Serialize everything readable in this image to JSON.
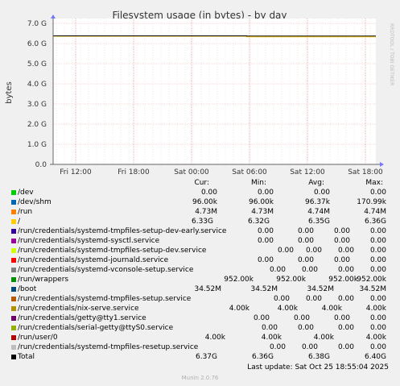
{
  "chart_data": {
    "type": "line",
    "title": "Filesystem usage (in bytes) - by day",
    "ylabel": "bytes",
    "side_label": "RRDTOOL / TOBI OETIKER",
    "ylim": [
      0,
      7.0
    ],
    "y_ticks": [
      "0.0",
      "1.0 G",
      "2.0 G",
      "3.0 G",
      "4.0 G",
      "5.0 G",
      "6.0 G",
      "7.0 G"
    ],
    "x_ticks": [
      "Fri 12:00",
      "Fri 18:00",
      "Sat 00:00",
      "Sat 06:00",
      "Sat 12:00",
      "Sat 18:00"
    ],
    "grid": true,
    "series": [
      {
        "name": "/",
        "color": "#ffcc00",
        "points": [
          [
            0,
            6.36
          ],
          [
            0.6,
            6.36
          ],
          [
            0.6,
            6.33
          ],
          [
            1,
            6.33
          ]
        ]
      },
      {
        "name": "Total",
        "color": "#000000",
        "points": [
          [
            0,
            6.38
          ],
          [
            0.6,
            6.38
          ],
          [
            0.6,
            6.37
          ],
          [
            1,
            6.37
          ]
        ]
      },
      {
        "name": "/run/wrappers",
        "color": "#00ff00",
        "points": [
          [
            0,
            0.0
          ],
          [
            1,
            0.0
          ]
        ]
      }
    ]
  },
  "legend": {
    "headers": {
      "cur": "Cur:",
      "min": "Min:",
      "avg": "Avg:",
      "max": "Max:"
    },
    "rows": [
      {
        "name": "/dev",
        "color": "#00cc00",
        "cur": "0.00",
        "min": "0.00",
        "avg": "0.00",
        "max": "0.00"
      },
      {
        "name": "/dev/shm",
        "color": "#0066b3",
        "cur": "96.00k",
        "min": "96.00k",
        "avg": "96.37k",
        "max": "170.99k"
      },
      {
        "name": "/run",
        "color": "#ff8000",
        "cur": "4.73M",
        "min": "4.73M",
        "avg": "4.74M",
        "max": "4.74M"
      },
      {
        "name": "/",
        "color": "#ffcc00",
        "cur": "6.33G",
        "min": "6.32G",
        "avg": "6.35G",
        "max": "6.36G"
      },
      {
        "name": "/run/credentials/systemd-tmpfiles-setup-dev-early.service",
        "color": "#330099",
        "cur": "0.00",
        "min": "0.00",
        "avg": "0.00",
        "max": "0.00"
      },
      {
        "name": "/run/credentials/systemd-sysctl.service",
        "color": "#990099",
        "cur": "0.00",
        "min": "0.00",
        "avg": "0.00",
        "max": "0.00"
      },
      {
        "name": "/run/credentials/systemd-tmpfiles-setup-dev.service",
        "color": "#ccff00",
        "cur": "0.00",
        "min": "0.00",
        "avg": "0.00",
        "max": "0.00"
      },
      {
        "name": "/run/credentials/systemd-journald.service",
        "color": "#ff0000",
        "cur": "0.00",
        "min": "0.00",
        "avg": "0.00",
        "max": "0.00"
      },
      {
        "name": "/run/credentials/systemd-vconsole-setup.service",
        "color": "#808080",
        "cur": "0.00",
        "min": "0.00",
        "avg": "0.00",
        "max": "0.00"
      },
      {
        "name": "/run/wrappers",
        "color": "#008f00",
        "cur": "952.00k",
        "min": "952.00k",
        "avg": "952.00k",
        "max": "952.00k"
      },
      {
        "name": "/boot",
        "color": "#00487d",
        "cur": "34.52M",
        "min": "34.52M",
        "avg": "34.52M",
        "max": "34.52M"
      },
      {
        "name": "/run/credentials/systemd-tmpfiles-setup.service",
        "color": "#b35a00",
        "cur": "0.00",
        "min": "0.00",
        "avg": "0.00",
        "max": "0.00"
      },
      {
        "name": "/run/credentials/nix-serve.service",
        "color": "#b38f00",
        "cur": "4.00k",
        "min": "4.00k",
        "avg": "4.00k",
        "max": "4.00k"
      },
      {
        "name": "/run/credentials/getty@tty1.service",
        "color": "#6b006b",
        "cur": "0.00",
        "min": "0.00",
        "avg": "0.00",
        "max": "0.00"
      },
      {
        "name": "/run/credentials/serial-getty@ttyS0.service",
        "color": "#8fb300",
        "cur": "0.00",
        "min": "0.00",
        "avg": "0.00",
        "max": "0.00"
      },
      {
        "name": "/run/user/0",
        "color": "#b30000",
        "cur": "4.00k",
        "min": "4.00k",
        "avg": "4.00k",
        "max": "4.00k"
      },
      {
        "name": "/run/credentials/systemd-tmpfiles-resetup.service",
        "color": "#bebebe",
        "cur": "0.00",
        "min": "0.00",
        "avg": "0.00",
        "max": "0.00"
      },
      {
        "name": "Total",
        "color": "#000000",
        "cur": "6.37G",
        "min": "6.36G",
        "avg": "6.38G",
        "max": "6.40G"
      }
    ]
  },
  "last_update": "Last update: Sat Oct 25 18:55:04 2025",
  "munin_version": "Munin 2.0.76"
}
